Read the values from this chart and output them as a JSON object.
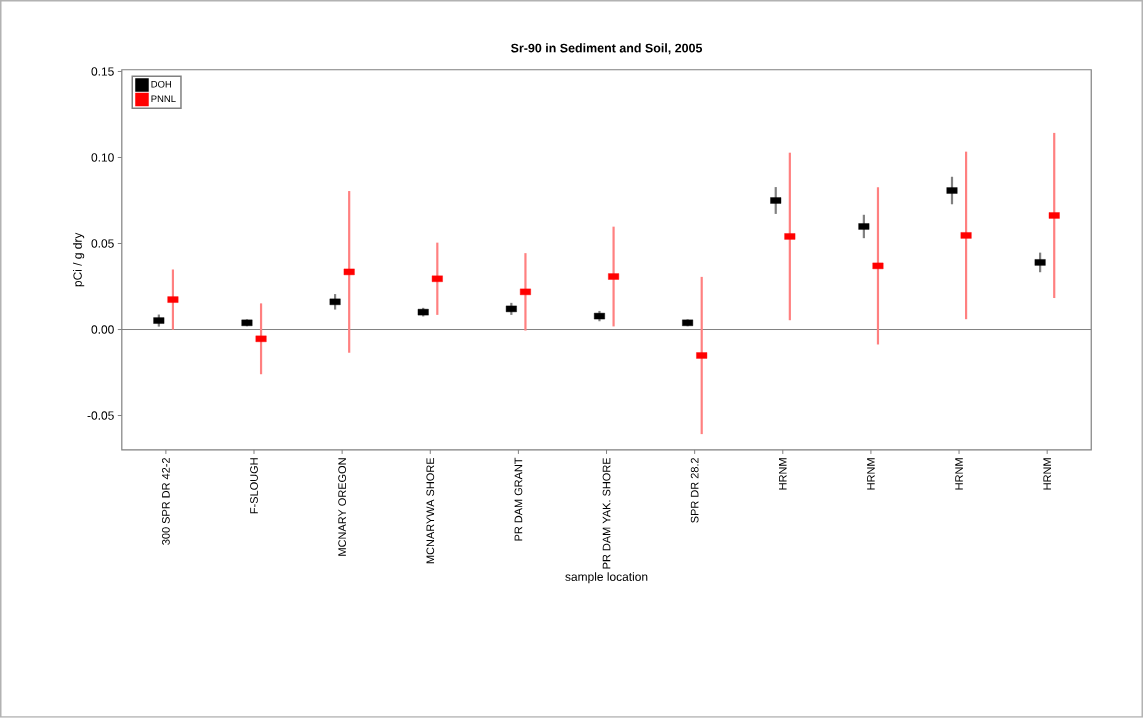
{
  "chart_data": {
    "type": "scatter",
    "title": "Sr-90 in Sediment and Soil, 2005",
    "xlabel": "sample location",
    "ylabel": "pCi / g  dry",
    "categories": [
      "300 SPR DR 42-2",
      "F-SLOUGH",
      "MCNARY OREGON",
      "MCNARYWA SHORE",
      "PR DAM GRANT",
      "PR DAM YAK. SHORE",
      "SPR DR 28.2",
      "HRNM",
      "HRNM",
      "HRNM",
      "HRNM"
    ],
    "series": [
      {
        "name": "DOH",
        "color": "#000000",
        "values": [
          0.0052,
          0.0039,
          0.0161,
          0.0101,
          0.012,
          0.0078,
          0.0039,
          0.075,
          0.0599,
          0.0808,
          0.039
        ],
        "errors": [
          0.0035,
          0.002,
          0.0045,
          0.0025,
          0.0035,
          0.003,
          0.002,
          0.0078,
          0.0068,
          0.008,
          0.0057
        ]
      },
      {
        "name": "PNNL",
        "color": "#ff0000",
        "values": [
          0.0174,
          -0.0054,
          0.0335,
          0.0295,
          0.0219,
          0.0308,
          -0.0151,
          0.0541,
          0.037,
          0.0547,
          0.0663
        ],
        "errors": [
          0.0175,
          0.0206,
          0.047,
          0.021,
          0.0225,
          0.029,
          0.0457,
          0.0487,
          0.0457,
          0.0487,
          0.048
        ]
      }
    ],
    "ylim": [
      -0.07,
      0.151
    ],
    "yticks": [
      {
        "value": -0.05,
        "label": "-0.05"
      },
      {
        "value": 0,
        "label": "0.00"
      },
      {
        "value": 0.05,
        "label": "0.05"
      },
      {
        "value": 0.1,
        "label": "0.10"
      },
      {
        "value": 0.15,
        "label": "0.15"
      }
    ],
    "ref_lines": [
      {
        "axis": "y",
        "value": 0,
        "color": "#808080"
      }
    ],
    "legend": "top left",
    "grid": false,
    "marker": "square"
  }
}
